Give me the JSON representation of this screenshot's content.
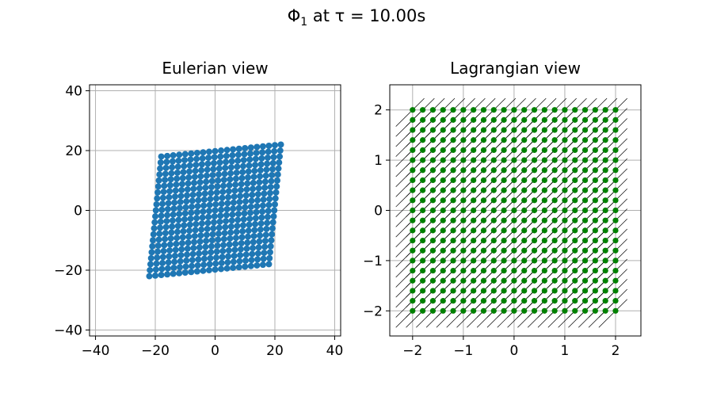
{
  "figure": {
    "title_prefix": "Φ",
    "title_subscript": "1",
    "title_suffix": " at τ = 10.00s"
  },
  "chart_data": [
    {
      "type": "scatter",
      "title": "Eulerian view",
      "xlabel": "",
      "ylabel": "",
      "xlim": [
        -42,
        42
      ],
      "ylim": [
        -42,
        42
      ],
      "xticks": [
        -40,
        -20,
        0,
        20,
        40
      ],
      "yticks": [
        -40,
        -20,
        0,
        20,
        40
      ],
      "grid": true,
      "marker_color": "#1f77b4",
      "description_of_points": "sheared 21x21 grid: x = X + 10*Y, y = 10*X + Y for X,Y in [-2,2]",
      "grid_n": 21,
      "domain": [
        -2,
        2
      ],
      "map": {
        "xx": 1,
        "xy": 10,
        "yx": 10,
        "yy": 1
      }
    },
    {
      "type": "scatter",
      "title": "Lagrangian view",
      "xlabel": "",
      "ylabel": "",
      "xlim": [
        -2.45,
        2.5
      ],
      "ylim": [
        -2.5,
        2.5
      ],
      "xticks": [
        -2,
        -1,
        0,
        1,
        2
      ],
      "yticks": [
        -2,
        -1,
        0,
        1,
        2
      ],
      "grid": true,
      "marker_color": "#008000",
      "quiver_color": "#000000",
      "grid_n": 21,
      "domain": [
        -2,
        2
      ],
      "quiver": {
        "dx": 0.28,
        "dy": 0.28,
        "offset_x": -0.05,
        "offset_y": -0.05
      }
    }
  ]
}
